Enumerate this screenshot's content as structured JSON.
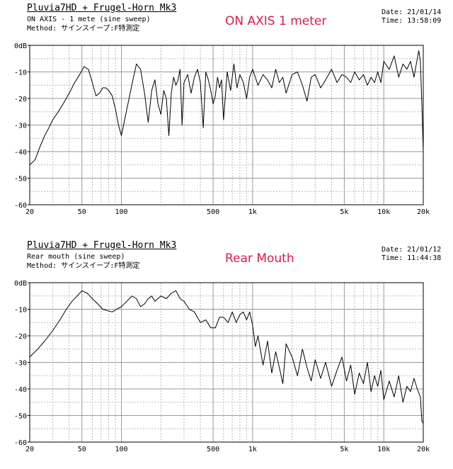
{
  "chart_data": [
    {
      "type": "line",
      "title": "Pluvia7HD + Frugel-Horn Mk3",
      "measurement": "ON AXIS - 1 mete (sine sweep)",
      "method": "Method: サインスイープ:F特測定",
      "date": "Date: 21/01/14",
      "time": "Time: 13:58:09",
      "annotation": "ON AXIS 1 meter",
      "xscale": "log",
      "xlim": [
        20,
        20000
      ],
      "ylim": [
        -60,
        0
      ],
      "grid": true,
      "xticks": [
        "20",
        "50",
        "100",
        "500",
        "1k",
        "5k",
        "10k",
        "20k"
      ],
      "yticks": [
        "0dB",
        "-10",
        "-20",
        "-30",
        "-40",
        "-50",
        "-60"
      ],
      "series": [
        {
          "x": [
            20,
            22,
            24,
            26,
            28,
            30,
            33,
            36,
            40,
            44,
            48,
            52,
            56,
            60,
            64,
            68,
            72,
            76,
            80,
            85,
            90,
            95,
            100,
            110,
            120,
            130,
            140,
            150,
            160,
            170,
            180,
            190,
            200,
            210,
            220,
            230,
            240,
            250,
            260,
            270,
            280,
            290,
            300,
            320,
            340,
            360,
            380,
            400,
            420,
            440,
            460,
            480,
            500,
            520,
            540,
            560,
            580,
            600,
            640,
            680,
            720,
            760,
            800,
            850,
            900,
            950,
            1000,
            1100,
            1200,
            1300,
            1400,
            1500,
            1600,
            1700,
            1800,
            2000,
            2200,
            2400,
            2600,
            2800,
            3000,
            3300,
            3600,
            4000,
            4400,
            4800,
            5200,
            5600,
            6000,
            6500,
            7000,
            7500,
            8000,
            8500,
            9000,
            9500,
            10000,
            11000,
            12000,
            13000,
            14000,
            15000,
            16000,
            17000,
            18000,
            18500,
            19000,
            19500,
            20000
          ],
          "y": [
            -45,
            -43,
            -38,
            -34,
            -31,
            -28,
            -25,
            -22,
            -18,
            -14,
            -11,
            -8,
            -9,
            -14,
            -19,
            -18,
            -16,
            -16,
            -17,
            -19,
            -24,
            -30,
            -34,
            -24,
            -15,
            -7,
            -9,
            -18,
            -29,
            -17,
            -13,
            -22,
            -26,
            -17,
            -20,
            -34,
            -18,
            -12,
            -15,
            -13,
            -9,
            -30,
            -14,
            -11,
            -18,
            -12,
            -9,
            -14,
            -31,
            -10,
            -13,
            -17,
            -22,
            -19,
            -12,
            -16,
            -13,
            -28,
            -10,
            -17,
            -7,
            -16,
            -11,
            -14,
            -20,
            -12,
            -9,
            -15,
            -11,
            -13,
            -16,
            -9,
            -14,
            -12,
            -18,
            -11,
            -10,
            -15,
            -21,
            -12,
            -11,
            -16,
            -13,
            -9,
            -14,
            -11,
            -12,
            -14,
            -10,
            -13,
            -11,
            -15,
            -12,
            -14,
            -10,
            -14,
            -6,
            -9,
            -4,
            -12,
            -7,
            -9,
            -6,
            -12,
            -5,
            -2,
            -6,
            -22,
            -40
          ]
        }
      ]
    },
    {
      "type": "line",
      "title": "Pluvia7HD + Frugel-Horn Mk3",
      "measurement": "Rear mouth (sine sweep)",
      "method": "Method: サインスイープ:F特測定",
      "date": "Date: 21/01/12",
      "time": "Time: 11:44:38",
      "annotation": "Rear Mouth",
      "xscale": "log",
      "xlim": [
        20,
        20000
      ],
      "ylim": [
        -60,
        0
      ],
      "grid": true,
      "xticks": [
        "20",
        "50",
        "100",
        "500",
        "1k",
        "5k",
        "10k",
        "20k"
      ],
      "yticks": [
        "0dB",
        "-10",
        "-20",
        "-30",
        "-40",
        "-50",
        "-60"
      ],
      "series": [
        {
          "x": [
            20,
            23,
            26,
            30,
            34,
            38,
            42,
            46,
            50,
            55,
            60,
            66,
            72,
            78,
            85,
            92,
            100,
            110,
            120,
            130,
            140,
            150,
            160,
            170,
            180,
            200,
            220,
            240,
            260,
            280,
            300,
            330,
            360,
            400,
            440,
            480,
            520,
            560,
            600,
            650,
            700,
            750,
            800,
            850,
            900,
            950,
            1000,
            1050,
            1100,
            1200,
            1300,
            1400,
            1500,
            1600,
            1700,
            1800,
            2000,
            2200,
            2400,
            2600,
            2800,
            3000,
            3300,
            3600,
            4000,
            4400,
            4800,
            5200,
            5600,
            6000,
            6500,
            7000,
            7500,
            8000,
            8500,
            9000,
            9500,
            10000,
            11000,
            12000,
            13000,
            14000,
            15000,
            16000,
            17000,
            18000,
            19000,
            19500,
            20000
          ],
          "y": [
            -28,
            -25,
            -22,
            -18,
            -14,
            -10,
            -7,
            -5,
            -3,
            -4,
            -6,
            -8,
            -10,
            -10.5,
            -11,
            -10,
            -9,
            -7,
            -5,
            -6,
            -9,
            -8,
            -6,
            -5,
            -7,
            -5,
            -6,
            -4,
            -3,
            -6,
            -7,
            -10,
            -11,
            -15,
            -14,
            -17,
            -17,
            -13,
            -13,
            -15,
            -11,
            -15,
            -12,
            -11,
            -14,
            -11,
            -16,
            -24,
            -20,
            -31,
            -22,
            -34,
            -26,
            -32,
            -38,
            -23,
            -28,
            -35,
            -25,
            -32,
            -37,
            -29,
            -36,
            -30,
            -39,
            -33,
            -28,
            -37,
            -31,
            -42,
            -34,
            -38,
            -30,
            -41,
            -35,
            -39,
            -33,
            -44,
            -37,
            -43,
            -35,
            -45,
            -39,
            -41,
            -36,
            -40,
            -43,
            -52,
            -53
          ]
        }
      ]
    }
  ]
}
